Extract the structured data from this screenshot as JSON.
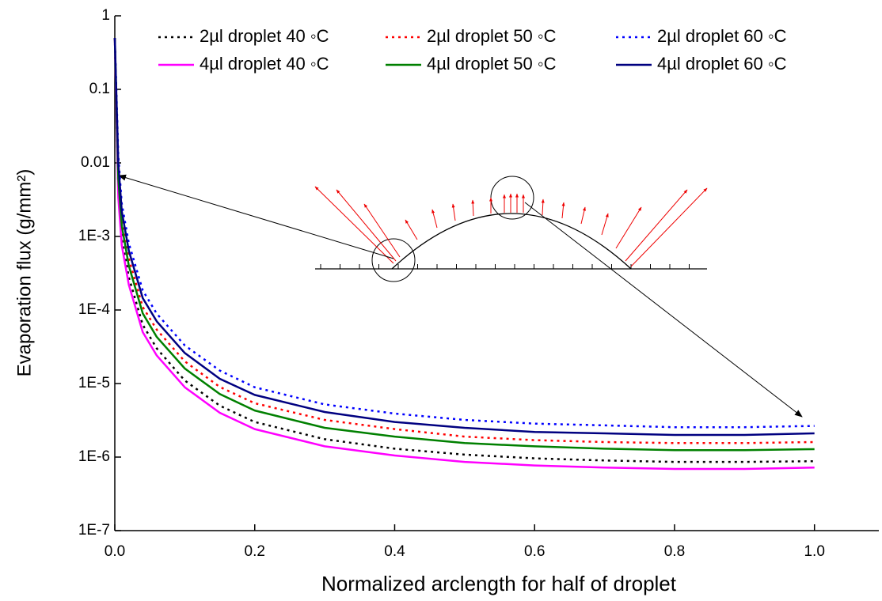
{
  "chart_data": {
    "type": "line",
    "xlabel": "Normalized arclength for half of droplet",
    "ylabel": "Evaporation flux (g/mm²)",
    "log_y": true,
    "xlim": [
      0,
      1.092
    ],
    "ylim": [
      1e-07,
      1
    ],
    "xticks": [
      {
        "value": 0,
        "label": "0.0"
      },
      0.2,
      0.4,
      0.6,
      0.8,
      {
        "value": 1,
        "label": "1.0"
      }
    ],
    "yticks": [
      {
        "value": 1e-07,
        "label": "1E-7"
      },
      {
        "value": 1e-06,
        "label": "1E-6"
      },
      {
        "value": 1e-05,
        "label": "1E-5"
      },
      {
        "value": 0.0001,
        "label": "1E-4"
      },
      {
        "value": 0.001,
        "label": "1E-3"
      },
      0.01,
      0.1,
      1
    ],
    "x": [
      0,
      0.005,
      0.01,
      0.02,
      0.04,
      0.06,
      0.1,
      0.15,
      0.2,
      0.3,
      0.4,
      0.5,
      0.6,
      0.7,
      0.8,
      0.9,
      1.0
    ],
    "series": [
      {
        "name": "2µl droplet 40 ◦C",
        "color": "#000000",
        "style": "dotted",
        "values": [
          0.5,
          0.0043,
          0.00095,
          0.00028,
          6.3e-05,
          3e-05,
          1.1e-05,
          5e-06,
          3e-06,
          1.75e-06,
          1.3e-06,
          1.08e-06,
          9.6e-07,
          9e-07,
          8.6e-07,
          8.6e-07,
          8.8e-07
        ]
      },
      {
        "name": "2µl droplet 50 ◦C",
        "color": "#ff0000",
        "style": "dotted",
        "values": [
          0.5,
          0.0077,
          0.0017,
          0.0005,
          0.00011,
          5.4e-05,
          2e-05,
          9e-06,
          5.4e-06,
          3.2e-06,
          2.4e-06,
          1.9e-06,
          1.7e-06,
          1.6e-06,
          1.55e-06,
          1.55e-06,
          1.6e-06
        ]
      },
      {
        "name": "2µl droplet 60 ◦C",
        "color": "#0000ff",
        "style": "dotted",
        "values": [
          0.5,
          0.0126,
          0.0028,
          0.00081,
          0.000185,
          8.9e-05,
          3.3e-05,
          1.5e-05,
          8.9e-06,
          5.2e-06,
          3.9e-06,
          3.2e-06,
          2.85e-06,
          2.7e-06,
          2.55e-06,
          2.55e-06,
          2.65e-06
        ]
      },
      {
        "name": "4µl droplet 40 ◦C",
        "color": "#ff00ff",
        "style": "solid",
        "values": [
          0.5,
          0.0034,
          0.00076,
          0.00022,
          5e-05,
          2.4e-05,
          8.9e-06,
          4e-06,
          2.4e-06,
          1.4e-06,
          1.05e-06,
          8.6e-07,
          7.7e-07,
          7.2e-07,
          6.9e-07,
          6.9e-07,
          7.2e-07
        ]
      },
      {
        "name": "4µl droplet 50 ◦C",
        "color": "#008000",
        "style": "solid",
        "values": [
          0.5,
          0.0061,
          0.0014,
          0.0004,
          9e-05,
          4.3e-05,
          1.6e-05,
          7.2e-06,
          4.3e-06,
          2.5e-06,
          1.9e-06,
          1.55e-06,
          1.4e-06,
          1.3e-06,
          1.24e-06,
          1.24e-06,
          1.28e-06
        ]
      },
      {
        "name": "4µl droplet 60 ◦C",
        "color": "#000080",
        "style": "solid",
        "values": [
          0.5,
          0.0099,
          0.0022,
          0.00064,
          0.000145,
          7e-05,
          2.6e-05,
          1.16e-05,
          7e-06,
          4.1e-06,
          3e-06,
          2.5e-06,
          2.2e-06,
          2.1e-06,
          2e-06,
          2e-06,
          2.1e-06
        ]
      }
    ]
  }
}
